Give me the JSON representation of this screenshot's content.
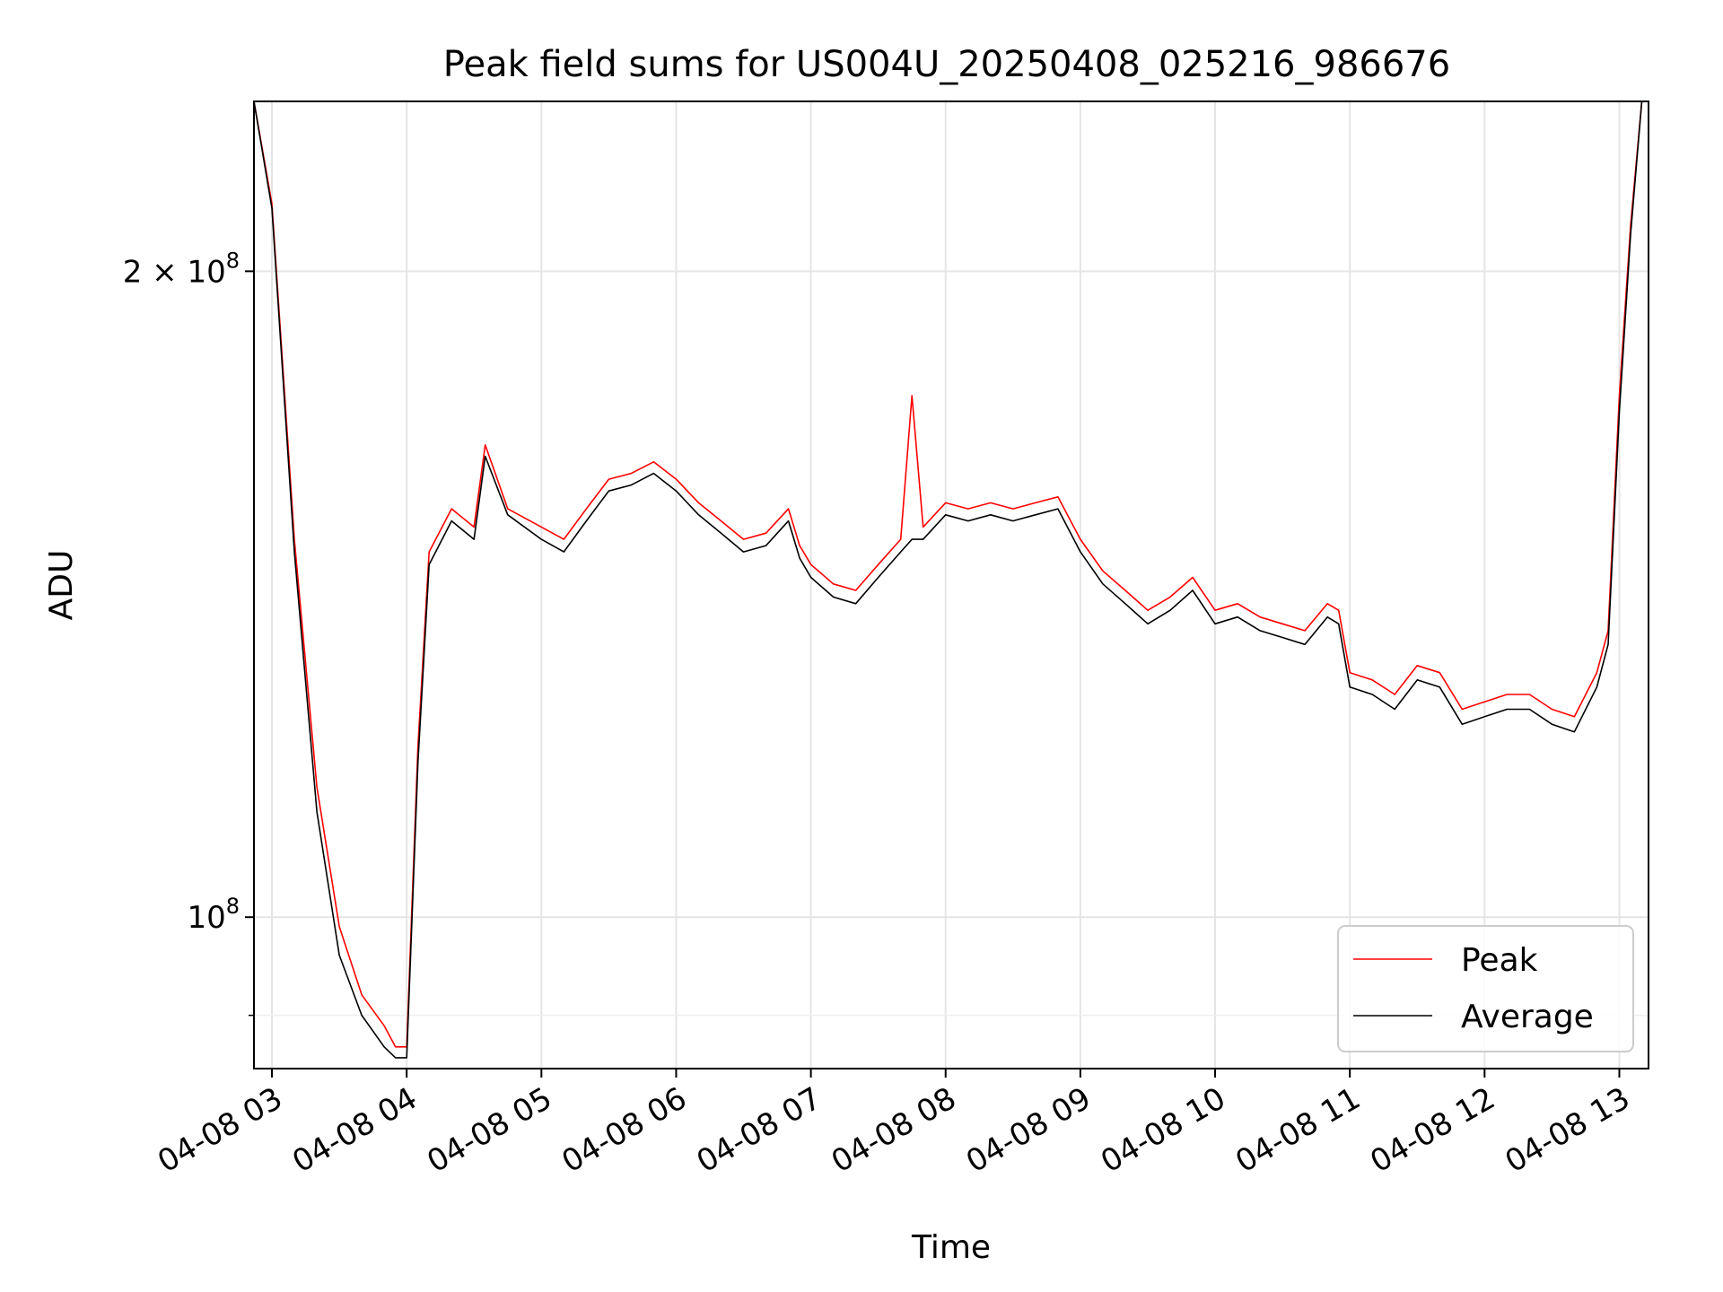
{
  "chart_data": {
    "type": "line",
    "title": "Peak field sums for US004U_20250408_025216_986676",
    "xlabel": "Time",
    "ylabel": "ADU",
    "y_scale": "log",
    "ylim": [
      85000000,
      240000000
    ],
    "xlim": [
      "2025-04-08 02:52",
      "2025-04-08 13:13"
    ],
    "grid": true,
    "legend_position": "lower right",
    "x_ticks": [
      {
        "value": "2025-04-08 03:00",
        "label": "04-08 03"
      },
      {
        "value": "2025-04-08 04:00",
        "label": "04-08 04"
      },
      {
        "value": "2025-04-08 05:00",
        "label": "04-08 05"
      },
      {
        "value": "2025-04-08 06:00",
        "label": "04-08 06"
      },
      {
        "value": "2025-04-08 07:00",
        "label": "04-08 07"
      },
      {
        "value": "2025-04-08 08:00",
        "label": "04-08 08"
      },
      {
        "value": "2025-04-08 09:00",
        "label": "04-08 09"
      },
      {
        "value": "2025-04-08 10:00",
        "label": "04-08 10"
      },
      {
        "value": "2025-04-08 11:00",
        "label": "04-08 11"
      },
      {
        "value": "2025-04-08 12:00",
        "label": "04-08 12"
      },
      {
        "value": "2025-04-08 13:00",
        "label": "04-08 13"
      }
    ],
    "y_major_ticks": [
      {
        "value": 100000000,
        "mantissa": "",
        "base": "10",
        "exp": "8"
      },
      {
        "value": 200000000,
        "mantissa": "2 × ",
        "base": "10",
        "exp": "8"
      }
    ],
    "y_minor_ticks": [
      90000000
    ],
    "x": [
      "2025-04-08 02:52",
      "2025-04-08 03:00",
      "2025-04-08 03:10",
      "2025-04-08 03:20",
      "2025-04-08 03:30",
      "2025-04-08 03:40",
      "2025-04-08 03:50",
      "2025-04-08 03:55",
      "2025-04-08 04:00",
      "2025-04-08 04:05",
      "2025-04-08 04:10",
      "2025-04-08 04:20",
      "2025-04-08 04:30",
      "2025-04-08 04:35",
      "2025-04-08 04:45",
      "2025-04-08 05:00",
      "2025-04-08 05:10",
      "2025-04-08 05:20",
      "2025-04-08 05:30",
      "2025-04-08 05:40",
      "2025-04-08 05:50",
      "2025-04-08 06:00",
      "2025-04-08 06:10",
      "2025-04-08 06:20",
      "2025-04-08 06:30",
      "2025-04-08 06:40",
      "2025-04-08 06:50",
      "2025-04-08 06:55",
      "2025-04-08 07:00",
      "2025-04-08 07:10",
      "2025-04-08 07:20",
      "2025-04-08 07:30",
      "2025-04-08 07:40",
      "2025-04-08 07:45",
      "2025-04-08 07:50",
      "2025-04-08 08:00",
      "2025-04-08 08:10",
      "2025-04-08 08:20",
      "2025-04-08 08:30",
      "2025-04-08 08:40",
      "2025-04-08 08:50",
      "2025-04-08 09:00",
      "2025-04-08 09:10",
      "2025-04-08 09:20",
      "2025-04-08 09:30",
      "2025-04-08 09:40",
      "2025-04-08 09:50",
      "2025-04-08 10:00",
      "2025-04-08 10:10",
      "2025-04-08 10:20",
      "2025-04-08 10:30",
      "2025-04-08 10:40",
      "2025-04-08 10:50",
      "2025-04-08 10:55",
      "2025-04-08 11:00",
      "2025-04-08 11:10",
      "2025-04-08 11:20",
      "2025-04-08 11:30",
      "2025-04-08 11:40",
      "2025-04-08 11:50",
      "2025-04-08 12:00",
      "2025-04-08 12:10",
      "2025-04-08 12:20",
      "2025-04-08 12:30",
      "2025-04-08 12:40",
      "2025-04-08 12:50",
      "2025-04-08 12:55",
      "2025-04-08 13:00",
      "2025-04-08 13:05",
      "2025-04-08 13:10",
      "2025-04-08 13:13"
    ],
    "series": [
      {
        "name": "Peak",
        "color": "#ff0000",
        "values": [
          240000000,
          215000000,
          150000000,
          115000000,
          99000000,
          92000000,
          89000000,
          87000000,
          87000000,
          120000000,
          148000000,
          155000000,
          152000000,
          166000000,
          155000000,
          152000000,
          150000000,
          155000000,
          160000000,
          161000000,
          163000000,
          160000000,
          156000000,
          153000000,
          150000000,
          151000000,
          155000000,
          149000000,
          146000000,
          143000000,
          142000000,
          146000000,
          150000000,
          175000000,
          152000000,
          156000000,
          155000000,
          156000000,
          155000000,
          156000000,
          157000000,
          150000000,
          145000000,
          142000000,
          139000000,
          141000000,
          144000000,
          139000000,
          140000000,
          138000000,
          137000000,
          136000000,
          140000000,
          139000000,
          130000000,
          129000000,
          127000000,
          131000000,
          130000000,
          125000000,
          126000000,
          127000000,
          127000000,
          125000000,
          124000000,
          130000000,
          136000000,
          175000000,
          210000000,
          240000000,
          240000000
        ]
      },
      {
        "name": "Average",
        "color": "#000000",
        "values": [
          240000000,
          214000000,
          148000000,
          112000000,
          96000000,
          90000000,
          87000000,
          86000000,
          86000000,
          118000000,
          146000000,
          153000000,
          150000000,
          164000000,
          154000000,
          150000000,
          148000000,
          153000000,
          158000000,
          159000000,
          161000000,
          158000000,
          154000000,
          151000000,
          148000000,
          149000000,
          153000000,
          147000000,
          144000000,
          141000000,
          140000000,
          144000000,
          148000000,
          150000000,
          150000000,
          154000000,
          153000000,
          154000000,
          153000000,
          154000000,
          155000000,
          148000000,
          143000000,
          140000000,
          137000000,
          139000000,
          142000000,
          137000000,
          138000000,
          136000000,
          135000000,
          134000000,
          138000000,
          137000000,
          128000000,
          127000000,
          125000000,
          129000000,
          128000000,
          123000000,
          124000000,
          125000000,
          125000000,
          123000000,
          122000000,
          128000000,
          134000000,
          172000000,
          208000000,
          240000000,
          240000000
        ]
      }
    ]
  }
}
